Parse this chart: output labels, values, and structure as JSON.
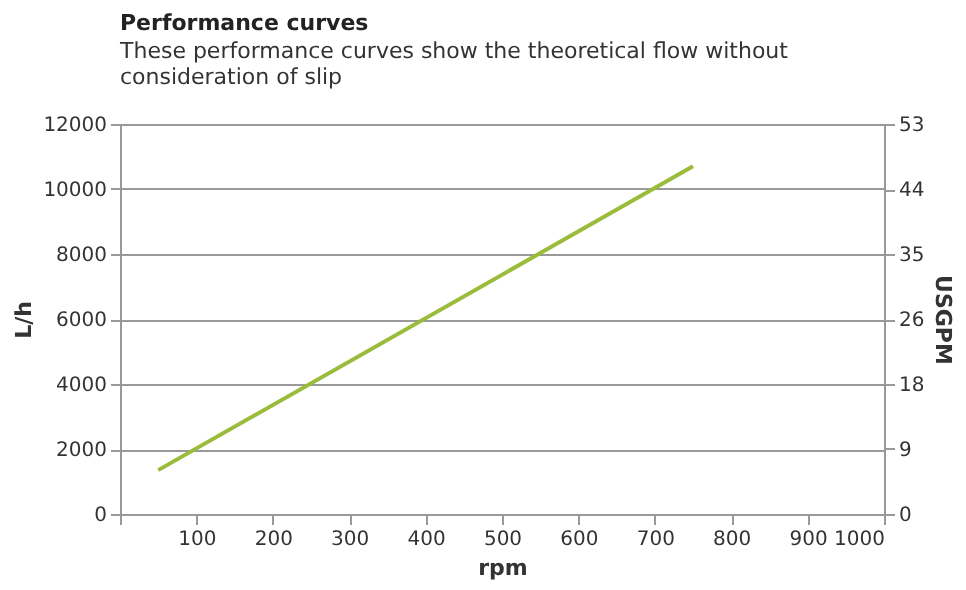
{
  "chart_data": {
    "type": "line",
    "title": "Performance curves",
    "subtitle": "These performance curves show the theoretical flow without consideration of slip",
    "xlabel": "rpm",
    "ylabel": "L/h",
    "y2label": "USGPM",
    "x": [
      50,
      750
    ],
    "series": [
      {
        "color": "#9bbb3b",
        "values": [
          1350,
          10700
        ]
      }
    ],
    "xlim": [
      0,
      1000
    ],
    "xticks": [
      {
        "value": 0,
        "label": null
      },
      100,
      200,
      300,
      400,
      500,
      600,
      700,
      800,
      900,
      1000
    ],
    "ylim": [
      0,
      12000
    ],
    "yticks": [
      0,
      2000,
      4000,
      6000,
      8000,
      10000,
      12000
    ],
    "y2lim": [
      0,
      52.84
    ],
    "y2ticks": [
      0,
      {
        "value": 8.81,
        "label": "9"
      },
      {
        "value": 17.61,
        "label": "18"
      },
      {
        "value": 26.42,
        "label": "26"
      },
      {
        "value": 35.22,
        "label": "35"
      },
      {
        "value": 44.03,
        "label": "44"
      },
      {
        "value": 52.84,
        "label": "53"
      }
    ],
    "grid": "y",
    "legend": false,
    "marker": "none",
    "line_style": "solid"
  }
}
